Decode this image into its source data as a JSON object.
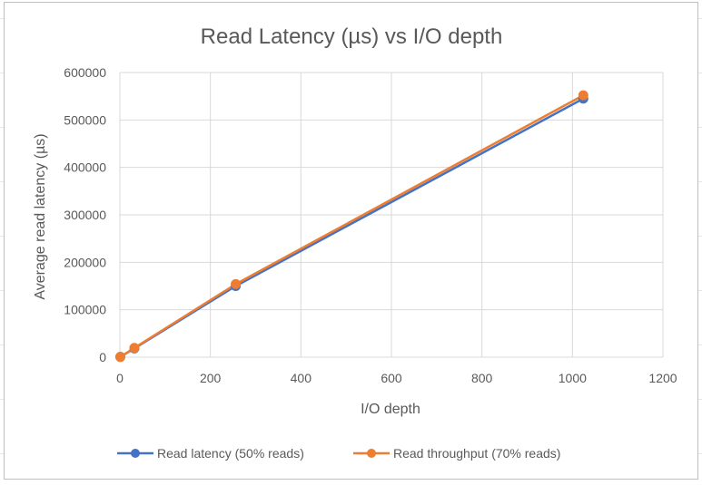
{
  "chart_data": {
    "type": "line",
    "title": "Read Latency (µs) vs I/O depth",
    "xlabel": "I/O depth",
    "ylabel": "Average read latency (µs)",
    "xlim": [
      0,
      1200
    ],
    "ylim": [
      0,
      600000
    ],
    "xticks": [
      0,
      200,
      400,
      600,
      800,
      1000,
      1200
    ],
    "yticks": [
      0,
      100000,
      200000,
      300000,
      400000,
      500000,
      600000
    ],
    "xtick_labels": [
      "0",
      "200",
      "400",
      "600",
      "800",
      "1000",
      "1200"
    ],
    "ytick_labels": [
      "0",
      "100000",
      "200000",
      "300000",
      "400000",
      "500000",
      "600000"
    ],
    "grid": true,
    "legend_position": "bottom",
    "series": [
      {
        "name": "Read latency (50% reads)",
        "color": "#4472C4",
        "x": [
          1,
          32,
          256,
          1024
        ],
        "y": [
          600,
          18500,
          150000,
          545000
        ]
      },
      {
        "name": "Read throughput (70% reads)",
        "color": "#ED7D31",
        "x": [
          1,
          32,
          256,
          1024
        ],
        "y": [
          600,
          19500,
          154000,
          552000
        ]
      }
    ]
  }
}
